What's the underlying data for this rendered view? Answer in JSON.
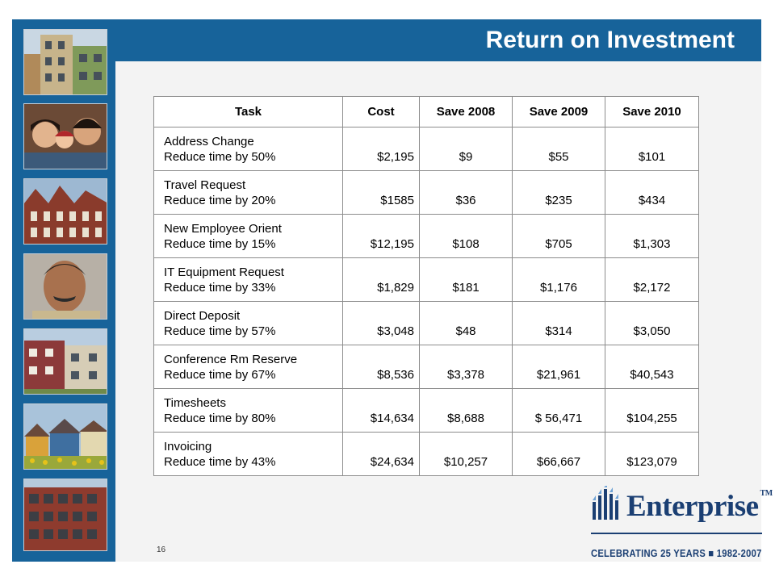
{
  "slide": {
    "title": "Return on Investment",
    "page_number": "16"
  },
  "table": {
    "headers": [
      "Task",
      "Cost",
      "Save 2008",
      "Save 2009",
      "Save 2010"
    ],
    "rows": [
      {
        "task_line1": "Address Change",
        "task_line2": "Reduce time by 50%",
        "cost": "$2,195",
        "save_2008": "$9",
        "save_2009": "$55",
        "save_2010": "$101"
      },
      {
        "task_line1": "Travel Request",
        "task_line2": "Reduce time by 20%",
        "cost": "$1585",
        "save_2008": "$36",
        "save_2009": "$235",
        "save_2010": "$434"
      },
      {
        "task_line1": "New Employee Orient",
        "task_line2": "Reduce time by 15%",
        "cost": "$12,195",
        "save_2008": "$108",
        "save_2009": "$705",
        "save_2010": "$1,303"
      },
      {
        "task_line1": "IT Equipment Request",
        "task_line2": "Reduce time by 33%",
        "cost": "$1,829",
        "save_2008": "$181",
        "save_2009": "$1,176",
        "save_2010": "$2,172"
      },
      {
        "task_line1": "Direct Deposit",
        "task_line2": "Reduce time by 57%",
        "cost": "$3,048",
        "save_2008": "$48",
        "save_2009": "$314",
        "save_2010": "$3,050"
      },
      {
        "task_line1": "Conference Rm Reserve",
        "task_line2": "Reduce time by 67%",
        "cost": "$8,536",
        "save_2008": "$3,378",
        "save_2009": "$21,961",
        "save_2010": "$40,543"
      },
      {
        "task_line1": "Timesheets",
        "task_line2": "Reduce time by 80%",
        "cost": "$14,634",
        "save_2008": "$8,688",
        "save_2009": "$ 56,471",
        "save_2010": "$104,255"
      },
      {
        "task_line1": "Invoicing",
        "task_line2": "Reduce time by 43%",
        "cost": "$24,634",
        "save_2008": "$10,257",
        "save_2009": "$66,667",
        "save_2010": "$123,079"
      }
    ]
  },
  "branding": {
    "logo_text": "Enterprise",
    "trademark": "TM",
    "tagline": "CELEBRATING 25 YEARS ■ 1982-2007"
  },
  "colors": {
    "header_blue": "#17639a",
    "brand_navy": "#1b3f73"
  }
}
